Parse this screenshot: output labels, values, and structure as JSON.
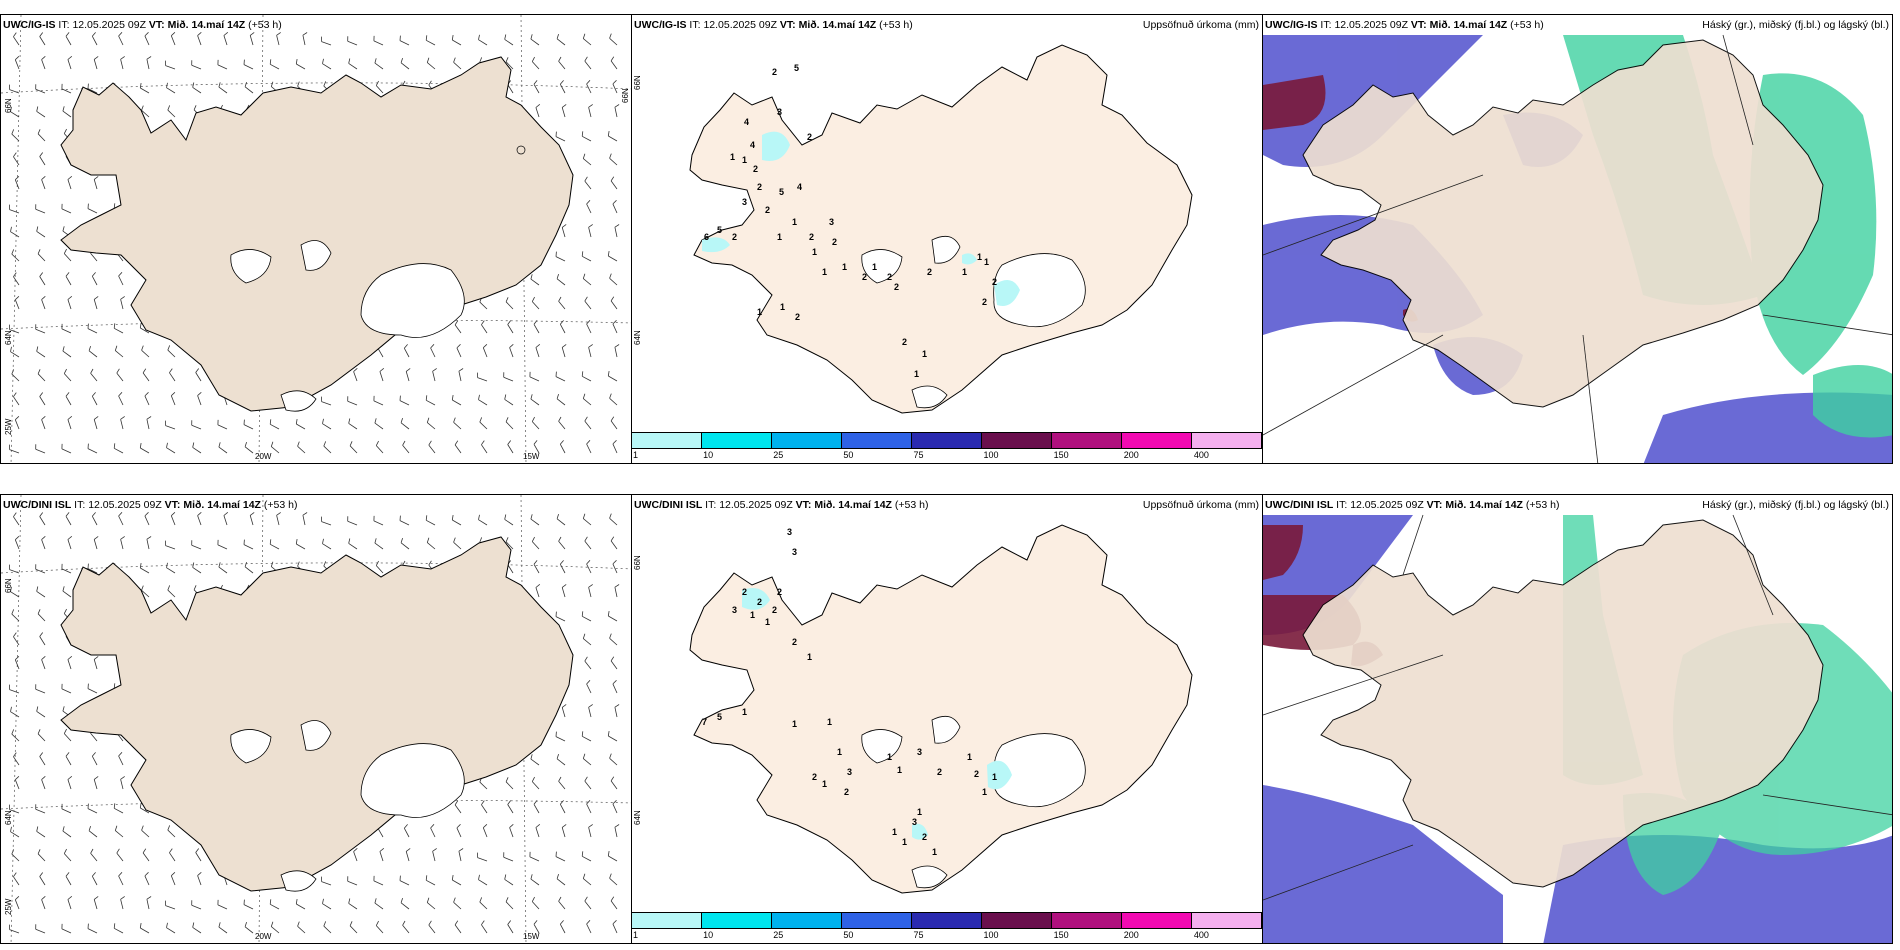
{
  "rows": [
    {
      "model": "UWC/IG-IS",
      "it_label": "IT:",
      "it_value": "12.05.2025 09Z",
      "vt_label": "VT:",
      "vt_value": "Mið. 14.maí 14Z",
      "lead": "(+53 h)",
      "precip_numbers": [
        "2",
        "5",
        "4",
        "3",
        "2",
        "4",
        "1",
        "1",
        "2",
        "2",
        "5",
        "4",
        "3",
        "2",
        "1",
        "3",
        "2",
        "1",
        "1",
        "1",
        "6",
        "5",
        "2",
        "1",
        "2",
        "2",
        "1",
        "2",
        "2",
        "2",
        "1",
        "1",
        "1",
        "2",
        "2",
        "1",
        "1",
        "2",
        "2",
        "1",
        "1"
      ]
    },
    {
      "model": "UWC/DINI ISL",
      "it_label": "IT:",
      "it_value": "12.05.2025 09Z",
      "vt_label": "VT:",
      "vt_value": "Mið. 14.maí 14Z",
      "lead": "(+53 h)",
      "precip_numbers": [
        "3",
        "3",
        "2",
        "2",
        "2",
        "2",
        "3",
        "1",
        "1",
        "2",
        "1",
        "7",
        "5",
        "1",
        "1",
        "1",
        "1",
        "3",
        "2",
        "1",
        "2",
        "1",
        "1",
        "3",
        "2",
        "1",
        "2",
        "1",
        "1",
        "1",
        "3",
        "2",
        "1",
        "1",
        "1"
      ]
    }
  ],
  "precip_title": "Uppsöfnuð úrkoma (mm)",
  "cloud_title": "Háský (gr.), miðský (fj.bl.) og lágský (bl.)",
  "colorbar": {
    "labels": [
      "1",
      "10",
      "25",
      "50",
      "75",
      "100",
      "150",
      "200",
      "400"
    ],
    "colors": [
      "#b8f7f7",
      "#00e5ee",
      "#00b2ee",
      "#2e62e6",
      "#2a2ab0",
      "#6a0f4d",
      "#b0107e",
      "#f20ab2",
      "#f5b0ef"
    ]
  },
  "lat_lon_labels": {
    "lat_66": "66N",
    "lat_64": "64N",
    "lon_25": "25W",
    "lon_20": "20W",
    "lon_15": "15W"
  },
  "colors": {
    "land_wind": "#ede0d1",
    "land_precip": "#fbeee2",
    "land_cloud": "#eedfd1",
    "high_cloud": "#3fd1a0",
    "mid_cloud": "#5a5ad0",
    "low_cloud": "#7a1a3a"
  }
}
